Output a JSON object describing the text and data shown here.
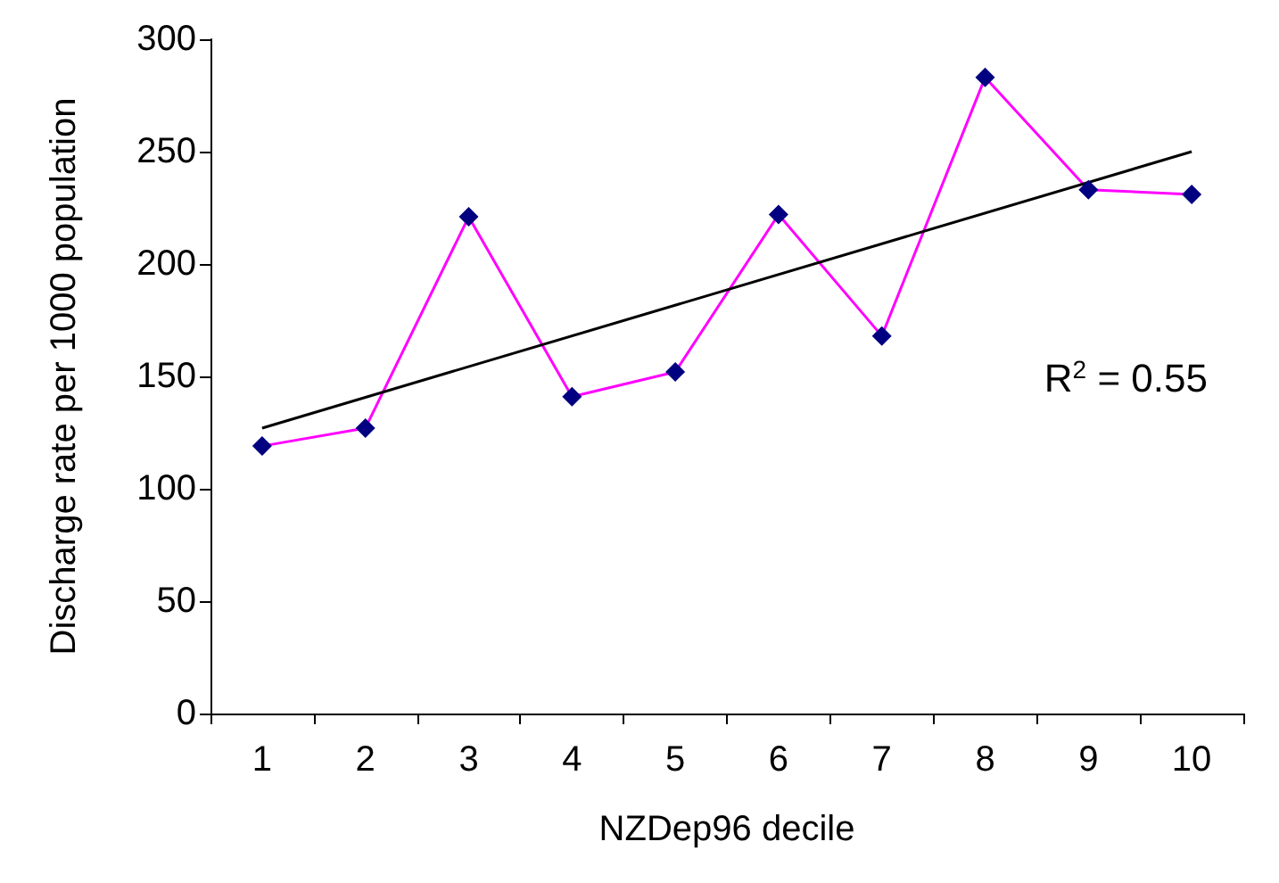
{
  "chart_data": {
    "type": "line",
    "xlabel": "NZDep96 decile",
    "ylabel": "Discharge rate per 1000 population",
    "categories": [
      "1",
      "2",
      "3",
      "4",
      "5",
      "6",
      "7",
      "8",
      "9",
      "10"
    ],
    "series": [
      {
        "color": "#ff00ff",
        "values": [
          119,
          127,
          221,
          141,
          152,
          222,
          168,
          283,
          233,
          231
        ],
        "colors": [
          "#000080",
          "#000080",
          "#000080",
          "#000080",
          "#000080",
          "#000080",
          "#000080",
          "#000080",
          "#000080",
          "#000080"
        ]
      },
      {
        "type": "line",
        "color": "#000000",
        "x": [
          "1",
          "10"
        ],
        "values": [
          127,
          250
        ],
        "marker": "none"
      }
    ],
    "ylim": [
      0,
      300
    ],
    "yticks": [
      0,
      50,
      100,
      150,
      200,
      250,
      300
    ],
    "grid": false,
    "marker": "diamond",
    "annotations": [
      "R$^{2}$ = 0.55"
    ]
  }
}
